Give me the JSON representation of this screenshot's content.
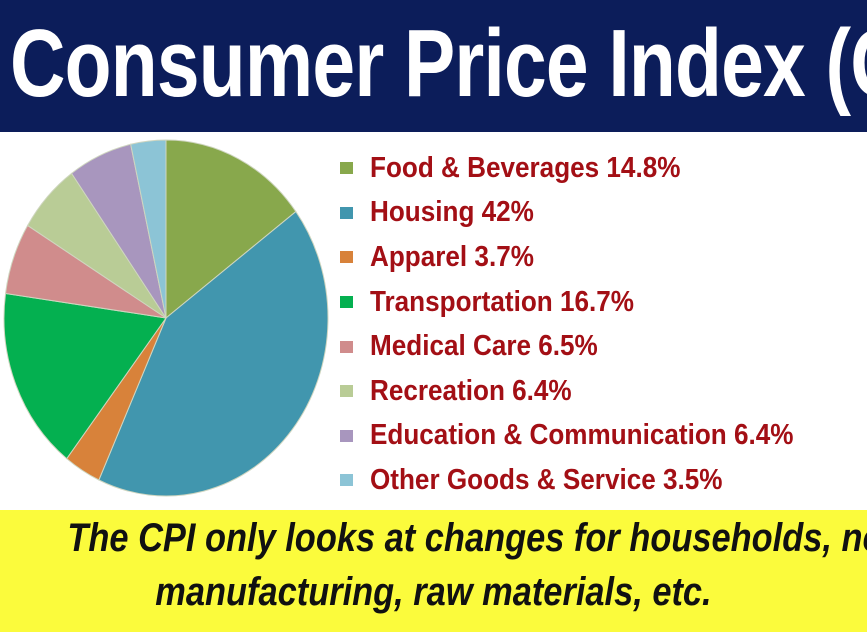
{
  "header": {
    "title": "Consumer Price Index (CPI)"
  },
  "chart_data": {
    "type": "pie",
    "title": "Consumer Price Index (CPI)",
    "start_angle": "top, clockwise",
    "legend_placement": "right",
    "categories": [
      "Food & Beverages",
      "Housing",
      "Apparel",
      "Transportation",
      "Medical Care",
      "Recreation",
      "Education & Communication",
      "Other Goods & Service"
    ],
    "values": [
      14.8,
      42,
      3.7,
      16.7,
      6.5,
      6.4,
      6.4,
      3.5
    ],
    "colors": [
      "#88a84c",
      "#4196ae",
      "#d8823a",
      "#04b050",
      "#d08c8c",
      "#b9cc96",
      "#a896be",
      "#8cc4d6"
    ],
    "legend_labels": [
      "Food & Beverages 14.8%",
      "Housing 42%",
      "Apparel 3.7%",
      "Transportation 16.7%",
      "Medical Care 6.5%",
      "Recreation 6.4%",
      "Education & Communication 6.4%",
      "Other Goods & Service 3.5%"
    ]
  },
  "footer": {
    "line1": "The CPI only looks at changes for households, not",
    "line2": "manufacturing, raw materials, etc."
  }
}
